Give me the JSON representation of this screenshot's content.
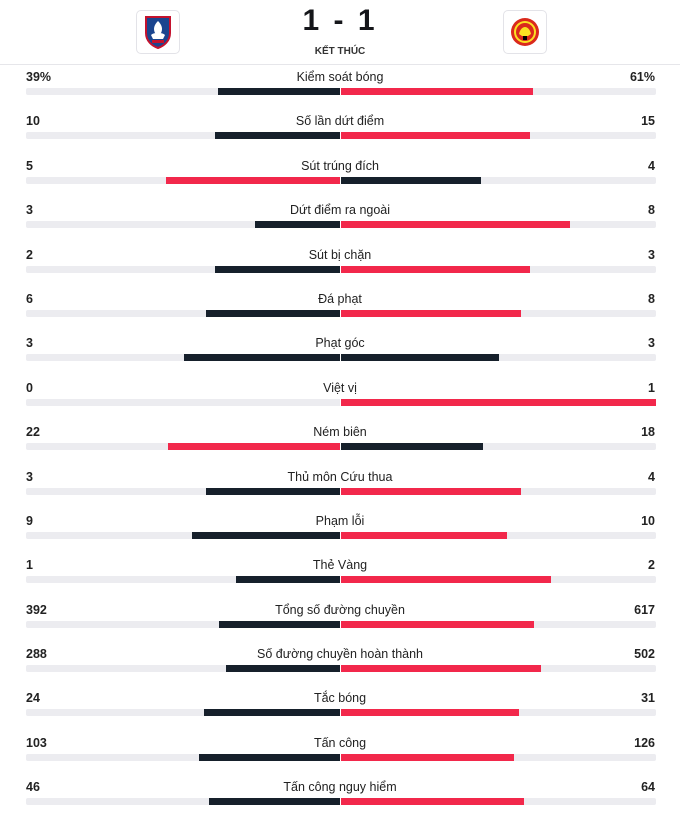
{
  "match": {
    "score": "1 - 1",
    "status": "KẾT THÚC"
  },
  "teams": {
    "home": {
      "logo_icon": "crystal-palace-crest-icon"
    },
    "away": {
      "logo_icon": "manchester-united-crest-icon"
    }
  },
  "colors": {
    "dark": "#16202b",
    "red": "#f2284b",
    "track": "#ececf0"
  },
  "stats": [
    {
      "label": "Kiểm soát bóng",
      "home": "39%",
      "away": "61%",
      "home_value": 39,
      "away_value": 61,
      "leader": "away"
    },
    {
      "label": "Số lần dứt điểm",
      "home": "10",
      "away": "15",
      "home_value": 10,
      "away_value": 15,
      "leader": "away"
    },
    {
      "label": "Sút trúng đích",
      "home": "5",
      "away": "4",
      "home_value": 5,
      "away_value": 4,
      "leader": "home"
    },
    {
      "label": "Dứt điểm ra ngoài",
      "home": "3",
      "away": "8",
      "home_value": 3,
      "away_value": 8,
      "leader": "away"
    },
    {
      "label": "Sút bị chặn",
      "home": "2",
      "away": "3",
      "home_value": 2,
      "away_value": 3,
      "leader": "away"
    },
    {
      "label": "Đá phạt",
      "home": "6",
      "away": "8",
      "home_value": 6,
      "away_value": 8,
      "leader": "away"
    },
    {
      "label": "Phạt góc",
      "home": "3",
      "away": "3",
      "home_value": 3,
      "away_value": 3,
      "leader": "none"
    },
    {
      "label": "Việt vị",
      "home": "0",
      "away": "1",
      "home_value": 0,
      "away_value": 1,
      "leader": "away"
    },
    {
      "label": "Ném biên",
      "home": "22",
      "away": "18",
      "home_value": 22,
      "away_value": 18,
      "leader": "home"
    },
    {
      "label": "Thủ môn Cứu thua",
      "home": "3",
      "away": "4",
      "home_value": 3,
      "away_value": 4,
      "leader": "away"
    },
    {
      "label": "Phạm lỗi",
      "home": "9",
      "away": "10",
      "home_value": 9,
      "away_value": 10,
      "leader": "away"
    },
    {
      "label": "Thẻ Vàng",
      "home": "1",
      "away": "2",
      "home_value": 1,
      "away_value": 2,
      "leader": "away"
    },
    {
      "label": "Tổng số đường chuyền",
      "home": "392",
      "away": "617",
      "home_value": 392,
      "away_value": 617,
      "leader": "away"
    },
    {
      "label": "Số đường chuyền hoàn thành",
      "home": "288",
      "away": "502",
      "home_value": 288,
      "away_value": 502,
      "leader": "away"
    },
    {
      "label": "Tắc bóng",
      "home": "24",
      "away": "31",
      "home_value": 24,
      "away_value": 31,
      "leader": "away"
    },
    {
      "label": "Tấn công",
      "home": "103",
      "away": "126",
      "home_value": 103,
      "away_value": 126,
      "leader": "away"
    },
    {
      "label": "Tấn công nguy hiểm",
      "home": "46",
      "away": "64",
      "home_value": 46,
      "away_value": 64,
      "leader": "away"
    }
  ]
}
